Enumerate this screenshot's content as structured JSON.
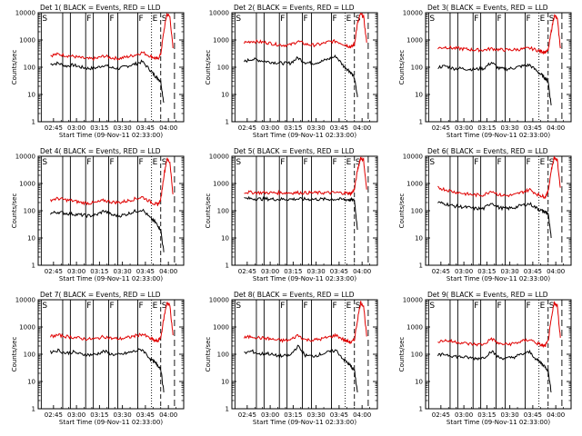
{
  "figure": {
    "xlabel": "Start Time (09-Nov-11 02:33:00)",
    "ylabel": "Counts/sec",
    "colors": {
      "events": "#000000",
      "lld": "#e00000",
      "axes": "#000000"
    },
    "x_tick_labels": [
      "02:45",
      "03:00",
      "03:15",
      "03:30",
      "03:45",
      "04:00"
    ],
    "y_tick_labels": [
      "1",
      "10",
      "100",
      "1000",
      "10000"
    ]
  },
  "chart_data": [
    {
      "type": "line",
      "title": "Det 1( BLACK = Events, RED = LLD",
      "xlabel": "Start Time (09-Nov-11 02:33:00)",
      "ylabel": "Counts/sec",
      "yscale": "log",
      "ylim": [
        1,
        10000
      ],
      "x": [
        "02:43",
        "02:48",
        "02:53",
        "02:58",
        "03:03",
        "03:08",
        "03:13",
        "03:18",
        "03:23",
        "03:28",
        "03:33",
        "03:38",
        "03:43",
        "03:48",
        "03:51",
        "03:53",
        "03:55",
        "03:57",
        "03:59",
        "04:01",
        "04:03"
      ],
      "series": [
        {
          "name": "BLACK = Events",
          "values": [
            130,
            140,
            110,
            120,
            100,
            90,
            95,
            120,
            95,
            90,
            110,
            130,
            160,
            80,
            50,
            40,
            30,
            5,
            null,
            null,
            null
          ]
        },
        {
          "name": "RED = LLD",
          "values": [
            270,
            300,
            270,
            250,
            220,
            200,
            210,
            260,
            220,
            210,
            240,
            280,
            350,
            260,
            220,
            200,
            300,
            2000,
            9000,
            7000,
            500
          ]
        }
      ],
      "annotations": [
        "S",
        "F",
        "F",
        "F",
        "E",
        "S"
      ]
    },
    {
      "type": "line",
      "title": "Det 2( BLACK = Events, RED = LLD",
      "xlabel": "Start Time (09-Nov-11 02:33:00)",
      "ylabel": "Counts/sec",
      "yscale": "log",
      "ylim": [
        1,
        10000
      ],
      "x": [
        "02:43",
        "02:48",
        "02:53",
        "02:58",
        "03:03",
        "03:08",
        "03:13",
        "03:18",
        "03:23",
        "03:28",
        "03:33",
        "03:38",
        "03:43",
        "03:48",
        "03:51",
        "03:53",
        "03:55",
        "03:57",
        "03:59",
        "04:01",
        "04:03"
      ],
      "series": [
        {
          "name": "BLACK = Events",
          "values": [
            160,
            200,
            180,
            160,
            150,
            140,
            140,
            220,
            150,
            140,
            160,
            200,
            250,
            110,
            80,
            60,
            40,
            8,
            null,
            null,
            null
          ]
        },
        {
          "name": "RED = LLD",
          "values": [
            800,
            900,
            850,
            800,
            700,
            650,
            650,
            900,
            700,
            650,
            700,
            850,
            900,
            700,
            600,
            550,
            700,
            4000,
            9000,
            7000,
            800
          ]
        }
      ],
      "annotations": [
        "S",
        "F",
        "F",
        "F",
        "E",
        "S"
      ]
    },
    {
      "type": "line",
      "title": "Det 3( BLACK = Events, RED = LLD",
      "xlabel": "Start Time (09-Nov-11 02:33:00)",
      "ylabel": "Counts/sec",
      "yscale": "log",
      "ylim": [
        1,
        10000
      ],
      "x": [
        "02:43",
        "02:48",
        "02:53",
        "02:58",
        "03:03",
        "03:08",
        "03:13",
        "03:18",
        "03:23",
        "03:28",
        "03:33",
        "03:38",
        "03:43",
        "03:48",
        "03:51",
        "03:53",
        "03:55",
        "03:57",
        "03:59",
        "04:01",
        "04:03"
      ],
      "series": [
        {
          "name": "BLACK = Events",
          "values": [
            100,
            110,
            90,
            90,
            85,
            85,
            90,
            150,
            90,
            85,
            95,
            110,
            120,
            70,
            50,
            40,
            30,
            4,
            null,
            null,
            null
          ]
        },
        {
          "name": "RED = LLD",
          "values": [
            500,
            550,
            500,
            480,
            450,
            430,
            430,
            480,
            440,
            430,
            440,
            460,
            500,
            420,
            380,
            360,
            400,
            2000,
            8000,
            6000,
            500
          ]
        }
      ],
      "annotations": [
        "S",
        "F",
        "F",
        "F",
        "E",
        "S"
      ]
    },
    {
      "type": "line",
      "title": "Det 4( BLACK = Events, RED = LLD",
      "xlabel": "Start Time (09-Nov-11 02:33:00)",
      "ylabel": "Counts/sec",
      "yscale": "log",
      "ylim": [
        1,
        10000
      ],
      "x": [
        "02:43",
        "02:48",
        "02:53",
        "02:58",
        "03:03",
        "03:08",
        "03:13",
        "03:18",
        "03:23",
        "03:28",
        "03:33",
        "03:38",
        "03:43",
        "03:48",
        "03:51",
        "03:53",
        "03:55",
        "03:57",
        "03:59",
        "04:01",
        "04:03"
      ],
      "series": [
        {
          "name": "BLACK = Events",
          "values": [
            80,
            90,
            80,
            75,
            70,
            65,
            70,
            100,
            70,
            65,
            75,
            95,
            110,
            55,
            40,
            30,
            20,
            3,
            null,
            null,
            null
          ]
        },
        {
          "name": "RED = LLD",
          "values": [
            250,
            280,
            250,
            230,
            200,
            190,
            200,
            240,
            210,
            200,
            230,
            270,
            320,
            220,
            180,
            170,
            250,
            1800,
            8000,
            6000,
            400
          ]
        }
      ],
      "annotations": [
        "S",
        "F",
        "F",
        "F",
        "E",
        "S"
      ]
    },
    {
      "type": "line",
      "title": "Det 5( BLACK = Events, RED = LLD",
      "xlabel": "Start Time (09-Nov-11 02:33:00)",
      "ylabel": "Counts/sec",
      "yscale": "log",
      "ylim": [
        1,
        10000
      ],
      "x": [
        "02:43",
        "02:48",
        "02:53",
        "02:58",
        "03:03",
        "03:08",
        "03:13",
        "03:18",
        "03:23",
        "03:28",
        "03:33",
        "03:38",
        "03:43",
        "03:48",
        "03:51",
        "03:53",
        "03:55",
        "03:57",
        "03:59",
        "04:01",
        "04:03"
      ],
      "series": [
        {
          "name": "BLACK = Events",
          "values": [
            280,
            280,
            270,
            270,
            265,
            265,
            265,
            270,
            265,
            265,
            265,
            265,
            265,
            260,
            255,
            250,
            240,
            20,
            null,
            null,
            null
          ]
        },
        {
          "name": "RED = LLD",
          "values": [
            480,
            470,
            460,
            460,
            455,
            455,
            455,
            460,
            455,
            455,
            455,
            455,
            460,
            450,
            440,
            430,
            600,
            3000,
            9000,
            7000,
            600
          ]
        }
      ],
      "annotations": [
        "S",
        "F",
        "F",
        "F",
        "E",
        "S"
      ]
    },
    {
      "type": "line",
      "title": "Det 6( BLACK = Events, RED = LLD",
      "xlabel": "Start Time (09-Nov-11 02:33:00)",
      "ylabel": "Counts/sec",
      "yscale": "log",
      "ylim": [
        1,
        10000
      ],
      "x": [
        "02:43",
        "02:48",
        "02:53",
        "02:58",
        "03:03",
        "03:08",
        "03:13",
        "03:18",
        "03:23",
        "03:28",
        "03:33",
        "03:38",
        "03:43",
        "03:48",
        "03:51",
        "03:53",
        "03:55",
        "03:57",
        "03:59",
        "04:01",
        "04:03"
      ],
      "series": [
        {
          "name": "BLACK = Events",
          "values": [
            200,
            180,
            150,
            140,
            130,
            120,
            120,
            200,
            130,
            120,
            130,
            160,
            180,
            120,
            100,
            90,
            80,
            10,
            null,
            null,
            null
          ]
        },
        {
          "name": "RED = LLD",
          "values": [
            700,
            600,
            500,
            450,
            400,
            380,
            380,
            550,
            380,
            360,
            380,
            480,
            600,
            400,
            350,
            320,
            500,
            3000,
            9000,
            7000,
            700
          ]
        }
      ],
      "annotations": [
        "S",
        "F",
        "F",
        "F",
        "E",
        "S"
      ]
    },
    {
      "type": "line",
      "title": "Det 7( BLACK = Events, RED = LLD",
      "xlabel": "Start Time (09-Nov-11 02:33:00)",
      "ylabel": "Counts/sec",
      "yscale": "log",
      "ylim": [
        1,
        10000
      ],
      "x": [
        "02:43",
        "02:48",
        "02:53",
        "02:58",
        "03:03",
        "03:08",
        "03:13",
        "03:18",
        "03:23",
        "03:28",
        "03:33",
        "03:38",
        "03:43",
        "03:48",
        "03:51",
        "03:53",
        "03:55",
        "03:57",
        "03:59",
        "04:01",
        "04:03"
      ],
      "series": [
        {
          "name": "BLACK = Events",
          "values": [
            120,
            140,
            110,
            120,
            100,
            95,
            100,
            130,
            100,
            95,
            110,
            130,
            150,
            70,
            50,
            40,
            30,
            4,
            null,
            null,
            null
          ]
        },
        {
          "name": "RED = LLD",
          "values": [
            450,
            500,
            450,
            420,
            380,
            360,
            370,
            450,
            380,
            370,
            400,
            470,
            550,
            380,
            320,
            300,
            400,
            2000,
            8000,
            6000,
            500
          ]
        }
      ],
      "annotations": [
        "S",
        "F",
        "F",
        "F",
        "E",
        "S"
      ]
    },
    {
      "type": "line",
      "title": "Det 8( BLACK = Events, RED = LLD",
      "xlabel": "Start Time (09-Nov-11 02:33:00)",
      "ylabel": "Counts/sec",
      "yscale": "log",
      "ylim": [
        1,
        10000
      ],
      "x": [
        "02:43",
        "02:48",
        "02:53",
        "02:58",
        "03:03",
        "03:08",
        "03:13",
        "03:18",
        "03:23",
        "03:28",
        "03:33",
        "03:38",
        "03:43",
        "03:48",
        "03:51",
        "03:53",
        "03:55",
        "03:57",
        "03:59",
        "04:01",
        "04:03"
      ],
      "series": [
        {
          "name": "BLACK = Events",
          "values": [
            110,
            130,
            100,
            110,
            90,
            85,
            90,
            200,
            90,
            85,
            100,
            120,
            140,
            65,
            45,
            35,
            25,
            4,
            null,
            null,
            null
          ]
        },
        {
          "name": "RED = LLD",
          "values": [
            400,
            450,
            400,
            380,
            340,
            320,
            330,
            500,
            340,
            330,
            360,
            420,
            500,
            340,
            290,
            270,
            350,
            1800,
            8000,
            6000,
            450
          ]
        }
      ],
      "annotations": [
        "S",
        "F",
        "F",
        "F",
        "E",
        "S"
      ]
    },
    {
      "type": "line",
      "title": "Det 9( BLACK = Events, RED = LLD",
      "xlabel": "Start Time (09-Nov-11 02:33:00)",
      "ylabel": "Counts/sec",
      "yscale": "log",
      "ylim": [
        1,
        10000
      ],
      "x": [
        "02:43",
        "02:48",
        "02:53",
        "02:58",
        "03:03",
        "03:08",
        "03:13",
        "03:18",
        "03:23",
        "03:28",
        "03:33",
        "03:38",
        "03:43",
        "03:48",
        "03:51",
        "03:53",
        "03:55",
        "03:57",
        "03:59",
        "04:01",
        "04:03"
      ],
      "series": [
        {
          "name": "BLACK = Events",
          "values": [
            90,
            100,
            85,
            80,
            75,
            70,
            75,
            130,
            75,
            70,
            80,
            100,
            120,
            60,
            45,
            35,
            25,
            4,
            null,
            null,
            null
          ]
        },
        {
          "name": "RED = LLD",
          "values": [
            300,
            320,
            290,
            270,
            240,
            230,
            230,
            380,
            240,
            230,
            250,
            300,
            350,
            250,
            210,
            200,
            300,
            1800,
            8000,
            6000,
            400
          ]
        }
      ],
      "annotations": [
        "S",
        "F",
        "F",
        "F",
        "E",
        "S"
      ]
    }
  ]
}
